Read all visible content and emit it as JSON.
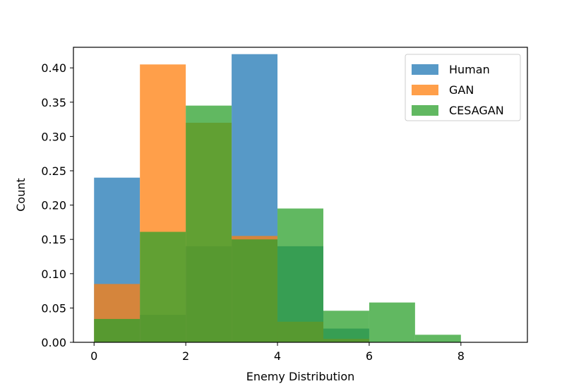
{
  "chart_data": {
    "type": "bar",
    "title": "",
    "xlabel": "Enemy Distribution",
    "ylabel": "Count",
    "xlim": [
      -0.45,
      9.45
    ],
    "ylim": [
      0,
      0.43
    ],
    "xticks": [
      0,
      2,
      4,
      6,
      8
    ],
    "xtick_labels": [
      "0",
      "2",
      "4",
      "6",
      "8"
    ],
    "yticks": [
      0.0,
      0.05,
      0.1,
      0.15,
      0.2,
      0.25,
      0.3,
      0.35,
      0.4
    ],
    "ytick_labels": [
      "0.00",
      "0.05",
      "0.10",
      "0.15",
      "0.20",
      "0.25",
      "0.30",
      "0.35",
      "0.40"
    ],
    "bin_edges": [
      0,
      1,
      2,
      3,
      4,
      5,
      6,
      7,
      8,
      9
    ],
    "bar_opacity": 0.75,
    "series": [
      {
        "name": "Human",
        "color": "#1f77b4",
        "values": [
          0.24,
          0.04,
          0.14,
          0.42,
          0.14,
          0.02,
          0.0,
          0.0,
          0.0
        ]
      },
      {
        "name": "GAN",
        "color": "#ff7f0e",
        "values": [
          0.085,
          0.405,
          0.32,
          0.155,
          0.03,
          0.005,
          0.0,
          0.0,
          0.0
        ]
      },
      {
        "name": "CESAGAN",
        "color": "#2ca02c",
        "values": [
          0.034,
          0.161,
          0.345,
          0.15,
          0.195,
          0.046,
          0.058,
          0.011,
          0.0
        ]
      }
    ],
    "legend": {
      "position": "top-right",
      "entries": [
        "Human",
        "GAN",
        "CESAGAN"
      ]
    },
    "grid": false
  }
}
